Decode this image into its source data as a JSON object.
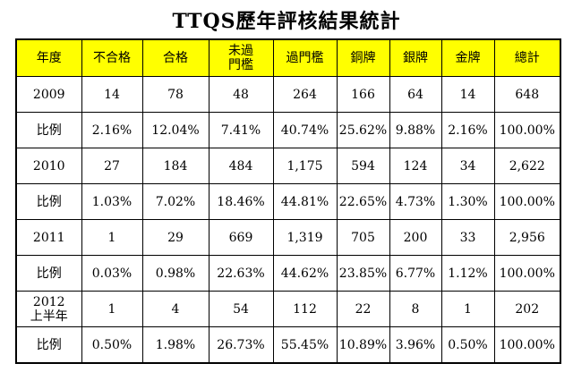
{
  "title": "TTQS歷年評核結果統計",
  "table": {
    "header": [
      "年度",
      "不合格",
      "合格",
      "未過\n門檻",
      "過門檻",
      "銅牌",
      "銀牌",
      "金牌",
      "總計"
    ],
    "rows": [
      [
        "2009",
        "14",
        "78",
        "48",
        "264",
        "166",
        "64",
        "14",
        "648"
      ],
      [
        "比例",
        "2.16%",
        "12.04%",
        "7.41%",
        "40.74%",
        "25.62%",
        "9.88%",
        "2.16%",
        "100.00%"
      ],
      [
        "2010",
        "27",
        "184",
        "484",
        "1,175",
        "594",
        "124",
        "34",
        "2,622"
      ],
      [
        "比例",
        "1.03%",
        "7.02%",
        "18.46%",
        "44.81%",
        "22.65%",
        "4.73%",
        "1.30%",
        "100.00%"
      ],
      [
        "2011",
        "1",
        "29",
        "669",
        "1,319",
        "705",
        "200",
        "33",
        "2,956"
      ],
      [
        "比例",
        "0.03%",
        "0.98%",
        "22.63%",
        "44.62%",
        "23.85%",
        "6.77%",
        "1.12%",
        "100.00%"
      ],
      [
        "2012\n上半年",
        "1",
        "4",
        "54",
        "112",
        "22",
        "8",
        "1",
        "202"
      ],
      [
        "比例",
        "0.50%",
        "1.98%",
        "26.73%",
        "55.45%",
        "10.89%",
        "3.96%",
        "0.50%",
        "100.00%"
      ]
    ]
  }
}
